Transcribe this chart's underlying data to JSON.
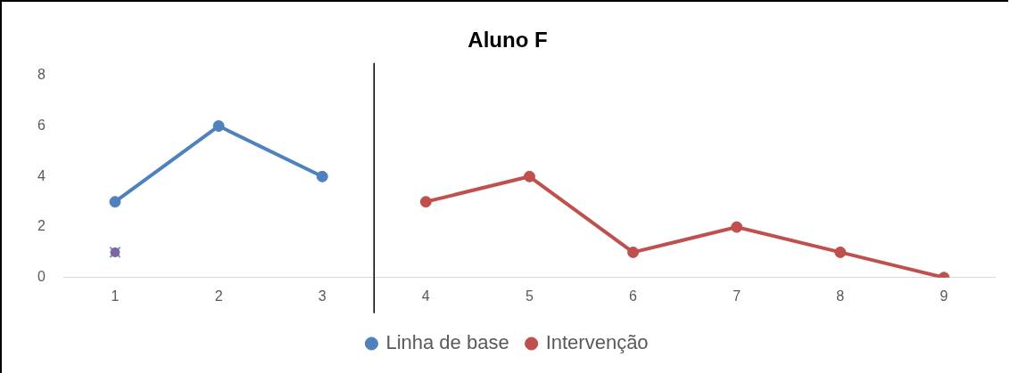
{
  "chart_data": {
    "type": "line",
    "title": "Aluno F",
    "series": [
      {
        "name": "Linha de base",
        "color": "#4f81bd",
        "x": [
          1,
          2,
          3
        ],
        "values": [
          3,
          6,
          4
        ]
      },
      {
        "name": "Intervenção",
        "color": "#c0504d",
        "x": [
          4,
          5,
          6,
          7,
          8,
          9
        ],
        "values": [
          3,
          4,
          1,
          2,
          1,
          0
        ]
      },
      {
        "type": "scatter",
        "color": "#8064a2",
        "x": [
          1
        ],
        "values": [
          1
        ]
      },
      {
        "type": "scatter",
        "color": "#4bacc6",
        "x": [
          1
        ],
        "values": [
          1
        ],
        "marker": "cross"
      }
    ],
    "xlim": [
      0.5,
      9.5
    ],
    "xticks": [
      1,
      2,
      3,
      4,
      5,
      6,
      7,
      8,
      9
    ],
    "ylim": [
      0,
      8
    ],
    "yticks": [
      0,
      2,
      4,
      6,
      8
    ],
    "ref_lines": [
      {
        "axis": "x",
        "value": 3.5,
        "color": "#000000"
      }
    ],
    "grid": false,
    "legend": "bottom",
    "marker": "circle",
    "line_style": "solid"
  }
}
